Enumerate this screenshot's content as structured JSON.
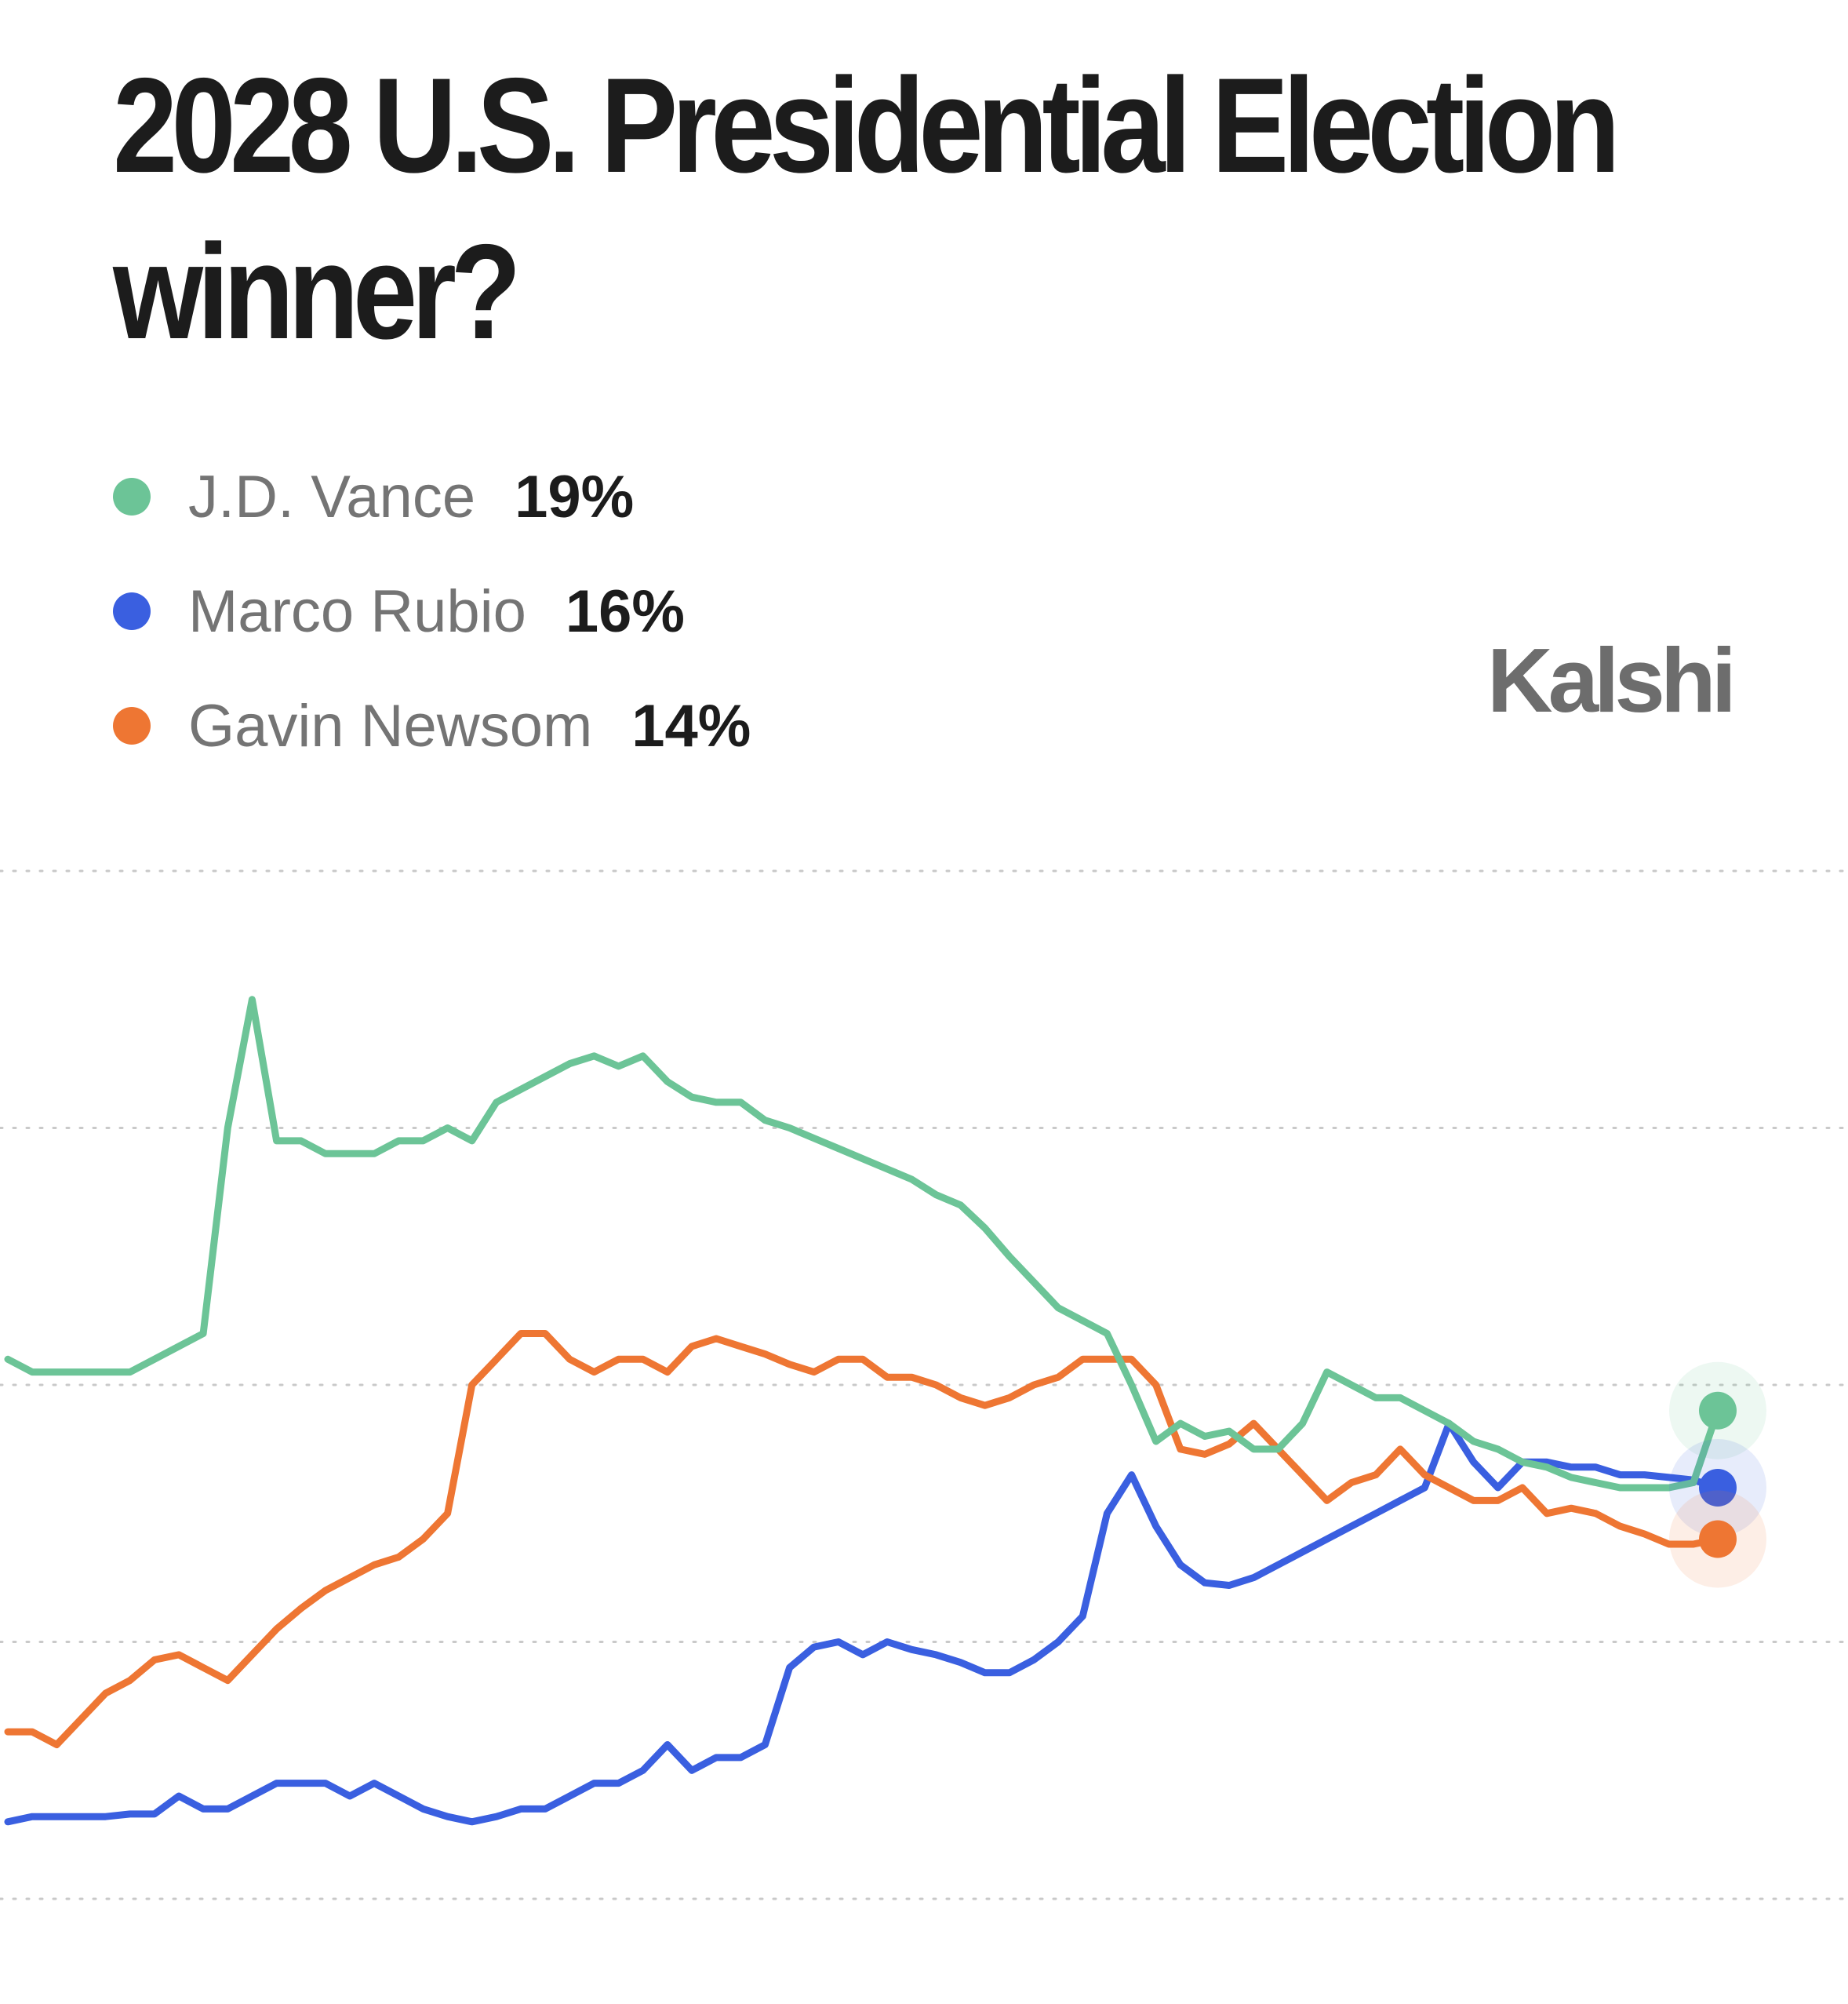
{
  "title_lines": [
    "2028 U.S. Presidential Election",
    "winner?"
  ],
  "brand": "Kalshi",
  "chart_data": {
    "type": "line",
    "title": "2028 U.S. Presidential Election winner?",
    "xlabel": "",
    "ylabel": "",
    "ylim": [
      0,
      40
    ],
    "yticks": [
      0,
      10,
      20,
      30,
      40
    ],
    "grid": true,
    "legend_position": "top-left",
    "x": [
      0,
      1,
      2,
      3,
      4,
      5,
      6,
      7,
      8,
      9,
      10,
      11,
      12,
      13,
      14,
      15,
      16,
      17,
      18,
      19,
      20,
      21,
      22,
      23,
      24,
      25,
      26,
      27,
      28,
      29,
      30,
      31,
      32,
      33,
      34,
      35,
      36,
      37,
      38,
      39,
      40,
      41,
      42,
      43,
      44,
      45,
      46,
      47,
      48,
      49,
      50,
      51,
      52,
      53,
      54,
      55,
      56,
      57,
      58,
      59,
      60,
      61,
      62,
      63,
      64,
      65,
      66,
      67,
      68,
      69,
      70
    ],
    "series": [
      {
        "name": "J.D. Vance",
        "current": "19%",
        "color": "#6cc497",
        "values": [
          21,
          20.5,
          20.5,
          20.5,
          20.5,
          20.5,
          21,
          21.5,
          22,
          30,
          35,
          29.5,
          29.5,
          29,
          29,
          29,
          29.5,
          29.5,
          30,
          29.5,
          31,
          31.5,
          32,
          32.5,
          32.8,
          32.4,
          32.8,
          31.8,
          31.2,
          31,
          31,
          30.3,
          30,
          29.6,
          29.2,
          28.8,
          28.4,
          28,
          27.4,
          27,
          26.1,
          25,
          24,
          23,
          22.5,
          22,
          20,
          17.8,
          18.5,
          18,
          18.2,
          17.5,
          17.5,
          18.5,
          20.5,
          20,
          19.5,
          19.5,
          19,
          18.5,
          17.8,
          17.5,
          17,
          16.8,
          16.4,
          16.2,
          16,
          16,
          16,
          16.2,
          19
        ]
      },
      {
        "name": "Marco Rubio",
        "current": "16%",
        "color": "#3a5fe0",
        "values": [
          3,
          3.2,
          3.2,
          3.2,
          3.2,
          3.3,
          3.3,
          4,
          3.5,
          3.5,
          4,
          4.5,
          4.5,
          4.5,
          4,
          4.5,
          4,
          3.5,
          3.2,
          3,
          3.2,
          3.5,
          3.5,
          4,
          4.5,
          4.5,
          5,
          6,
          5,
          5.5,
          5.5,
          6,
          9,
          9.8,
          10,
          9.5,
          10,
          9.7,
          9.5,
          9.2,
          8.8,
          8.8,
          9.3,
          10,
          11,
          15,
          16.5,
          14.5,
          13,
          12.3,
          12.2,
          12.5,
          13,
          13.5,
          14,
          14.5,
          15,
          15.5,
          16,
          18.5,
          17,
          16,
          17,
          17,
          16.8,
          16.8,
          16.5,
          16.5,
          16.4,
          16.3,
          16
        ]
      },
      {
        "name": "Gavin Newsom",
        "current": "14%",
        "color": "#ee7633",
        "values": [
          6.5,
          6.5,
          6,
          7,
          8,
          8.5,
          9.3,
          9.5,
          9,
          8.5,
          9.5,
          10.5,
          11.3,
          12,
          12.5,
          13,
          13.3,
          14,
          15,
          20,
          21,
          22,
          22,
          21,
          20.5,
          21,
          21,
          20.5,
          21.5,
          21.8,
          21.5,
          21.2,
          20.8,
          20.5,
          21,
          21,
          20.3,
          20.3,
          20,
          19.5,
          19.2,
          19.5,
          20,
          20.3,
          21,
          21,
          21,
          20,
          17.5,
          17.3,
          17.7,
          18.5,
          17.5,
          16.5,
          15.5,
          16.2,
          16.5,
          17.5,
          16.5,
          16,
          15.5,
          15.5,
          16,
          15,
          15.2,
          15,
          14.5,
          14.2,
          13.8,
          13.8,
          14
        ]
      }
    ]
  }
}
